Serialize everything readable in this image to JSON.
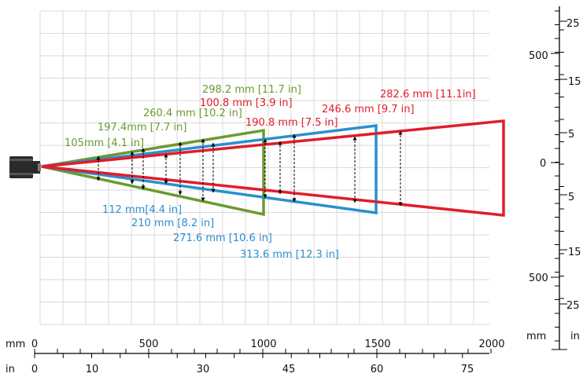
{
  "colors": {
    "green": "#6a9a2e",
    "blue": "#2a8fd0",
    "red": "#e11d2a",
    "camera": "#2a2a2a"
  },
  "icons": {
    "camera": "camera-icon"
  },
  "axes": {
    "bottom_mm": {
      "unit": "mm",
      "ticks": [
        "0",
        "500",
        "1000",
        "1500",
        "2000"
      ]
    },
    "bottom_in": {
      "unit": "in",
      "ticks": [
        "0",
        "10",
        "30",
        "45",
        "60",
        "75"
      ]
    },
    "right_mm": {
      "unit": "mm",
      "ticks": [
        "500",
        "0",
        "500"
      ]
    },
    "right_in": {
      "unit": "in",
      "ticks": [
        "25",
        "15",
        "5",
        "5",
        "15",
        "25"
      ]
    }
  },
  "annotations": {
    "green": [
      {
        "text": "298.2 mm [11.7 in]"
      },
      {
        "text": "260.4 mm [10.2 in]"
      },
      {
        "text": "197.4mm [7.7 in]"
      },
      {
        "text": "105mm [4.1 in]"
      }
    ],
    "red": [
      {
        "text": "282.6 mm [11.1in]"
      },
      {
        "text": "246.6 mm [9.7 in]"
      },
      {
        "text": "100.8 mm [3.9 in]"
      },
      {
        "text": "190.8 mm [7.5 in]"
      }
    ],
    "blue": [
      {
        "text": "112 mm[4.4 in]"
      },
      {
        "text": "210 mm [8.2 in]"
      },
      {
        "text": "271.6 mm [10.6 in]"
      },
      {
        "text": "313.6 mm [12.3 in]"
      }
    ]
  }
}
